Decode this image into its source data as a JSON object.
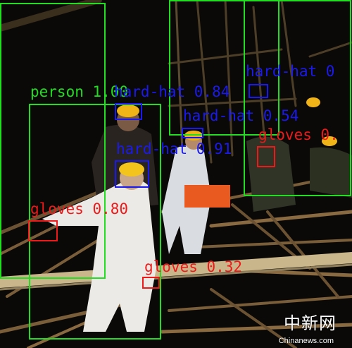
{
  "colors": {
    "person": "#22dd22",
    "hard-hat": "#1a1aee",
    "gloves": "#ee1a1a"
  },
  "detections": [
    {
      "id": "person-1",
      "label": "person 1.00",
      "cls": "person"
    },
    {
      "id": "person-2",
      "label": "",
      "cls": "person"
    },
    {
      "id": "person-3",
      "label": "",
      "cls": "person"
    },
    {
      "id": "person-4",
      "label": "",
      "cls": "person"
    },
    {
      "id": "hardhat-1",
      "label": "hard-hat 0.84",
      "cls": "hard-hat"
    },
    {
      "id": "hardhat-2",
      "label": "hard-hat 0.54",
      "cls": "hard-hat"
    },
    {
      "id": "hardhat-3",
      "label": "hard-hat 0.91",
      "cls": "hard-hat"
    },
    {
      "id": "hardhat-4",
      "label": "hard-hat 0",
      "cls": "hard-hat"
    },
    {
      "id": "gloves-1",
      "label": "gloves 0.80",
      "cls": "gloves"
    },
    {
      "id": "gloves-2",
      "label": "gloves 0.32",
      "cls": "gloves"
    },
    {
      "id": "gloves-3",
      "label": "gloves 0.",
      "cls": "gloves"
    }
  ],
  "watermark": {
    "chinese": "中新网",
    "site": "Chinanews.com"
  }
}
